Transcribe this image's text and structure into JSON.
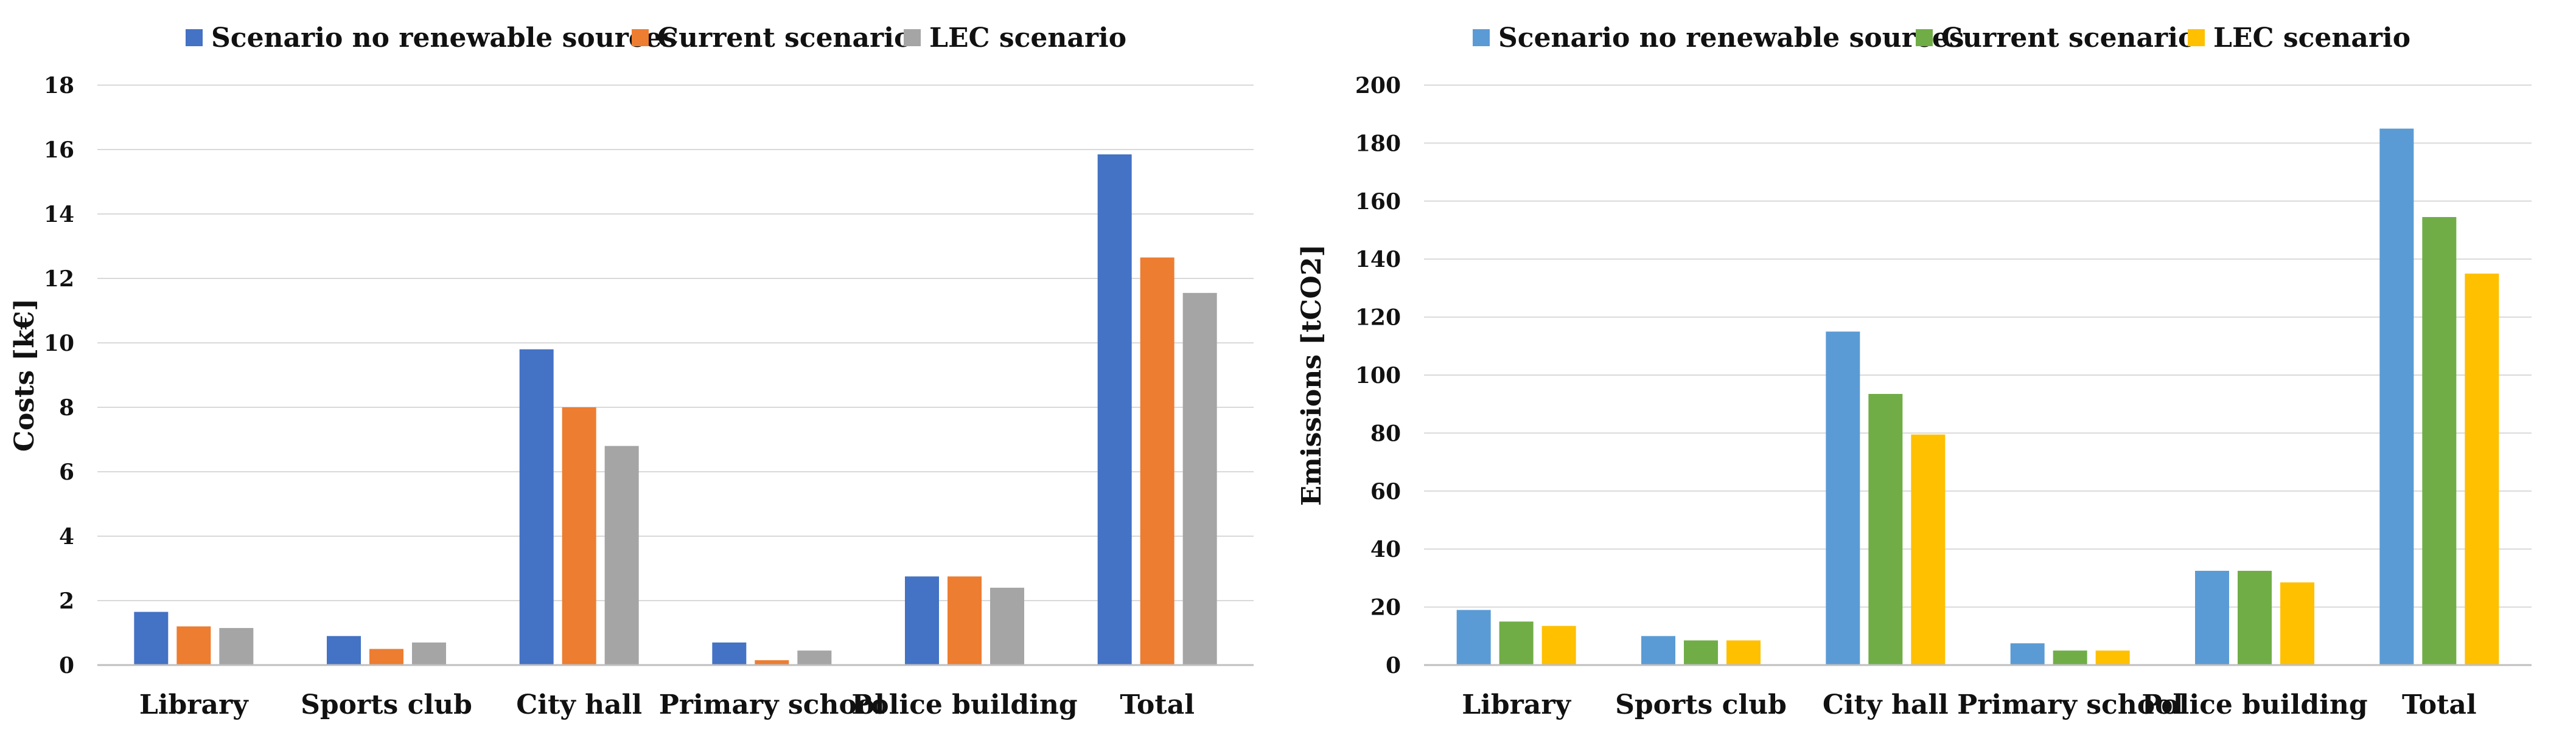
{
  "chart_data": [
    {
      "type": "bar",
      "title": "",
      "categories": [
        "Library",
        "Sports club",
        "City hall",
        "Primary school",
        "Police building",
        "Total"
      ],
      "series": [
        {
          "name": "Scenario no renewable sources",
          "color": "#4472C4",
          "values": [
            1.65,
            0.9,
            9.8,
            0.7,
            2.75,
            15.85
          ]
        },
        {
          "name": "Current scenario",
          "color": "#ED7D31",
          "values": [
            1.2,
            0.5,
            8.0,
            0.15,
            2.75,
            12.65
          ]
        },
        {
          "name": "LEC scenario",
          "color": "#A5A5A5",
          "values": [
            1.15,
            0.7,
            6.8,
            0.45,
            2.4,
            11.55
          ]
        }
      ],
      "xlabel": "",
      "ylabel": "Costs [k€]",
      "ylim": [
        0,
        18
      ],
      "yticks": [
        0,
        2,
        4,
        6,
        8,
        10,
        12,
        14,
        16,
        18
      ],
      "grid": true,
      "legend": "top-center"
    },
    {
      "type": "bar",
      "title": "",
      "categories": [
        "Library",
        "Sports club",
        "City hall",
        "Primary school",
        "Police building",
        "Total"
      ],
      "series": [
        {
          "name": "Scenario no renewable sources",
          "color": "#5B9BD5",
          "values": [
            19,
            10,
            115,
            7.5,
            32.5,
            185
          ]
        },
        {
          "name": "Current scenario",
          "color": "#70AD47",
          "values": [
            15,
            8.5,
            93.5,
            5,
            32.5,
            154.5
          ]
        },
        {
          "name": "LEC scenario",
          "color": "#FFC000",
          "values": [
            13.5,
            8.5,
            79.5,
            5,
            28.5,
            135
          ]
        }
      ],
      "xlabel": "",
      "ylabel": "Emissions [tCO2]",
      "ylim": [
        0,
        200
      ],
      "yticks": [
        0,
        20,
        40,
        60,
        80,
        100,
        120,
        140,
        160,
        180,
        200
      ],
      "grid": true,
      "legend": "top-center"
    }
  ]
}
